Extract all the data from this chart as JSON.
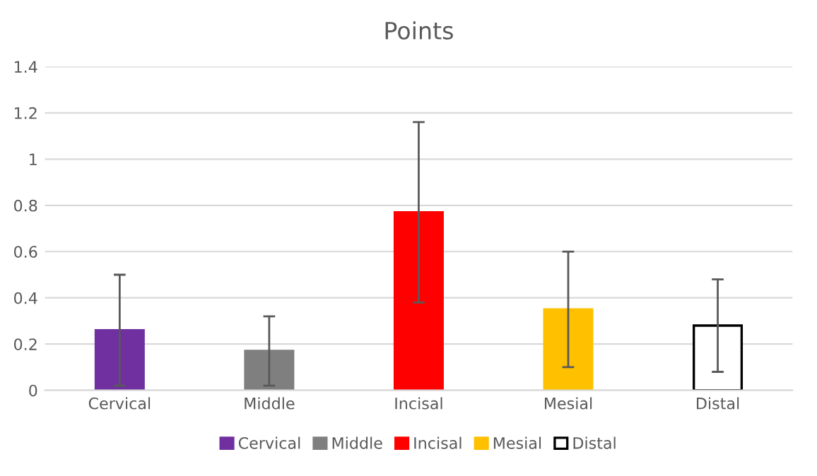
{
  "chart_data": {
    "type": "bar",
    "title": "Points",
    "categories": [
      "Cervical",
      "Middle",
      "Incisal",
      "Mesial",
      "Distal"
    ],
    "series": [
      {
        "name": "Cervical",
        "color": "#7030a0",
        "values": [
          0.26,
          null,
          null,
          null,
          null
        ],
        "errors": [
          [
            0.02,
            0.5
          ],
          null,
          null,
          null,
          null
        ]
      },
      {
        "name": "Middle",
        "color": "#7f7f7f",
        "values": [
          null,
          0.17,
          null,
          null,
          null
        ],
        "errors": [
          null,
          [
            0.02,
            0.32
          ],
          null,
          null,
          null
        ]
      },
      {
        "name": "Incisal",
        "color": "#ff0000",
        "values": [
          null,
          null,
          0.77,
          null,
          null
        ],
        "errors": [
          null,
          null,
          [
            0.38,
            1.16
          ],
          null,
          null
        ]
      },
      {
        "name": "Mesial",
        "color": "#ffc000",
        "values": [
          null,
          null,
          null,
          0.35,
          null
        ],
        "errors": [
          null,
          null,
          null,
          [
            0.1,
            0.6
          ],
          null
        ]
      },
      {
        "name": "Distal",
        "color": "#ffffff",
        "values": [
          null,
          null,
          null,
          null,
          0.28
        ],
        "errors": [
          null,
          null,
          null,
          null,
          [
            0.08,
            0.48
          ]
        ]
      }
    ],
    "ylim": [
      0,
      1.4
    ],
    "yticks": [
      0,
      0.2,
      0.4,
      0.6,
      0.8,
      1,
      1.2,
      1.4
    ],
    "grid": "y",
    "legend": "bottom"
  }
}
